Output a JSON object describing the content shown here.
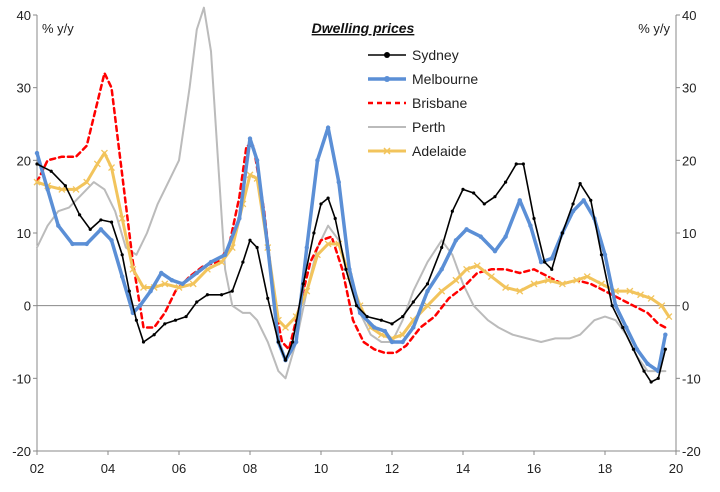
{
  "chart_data": {
    "type": "line",
    "title": "Dwelling prices",
    "ylabel_left": "% y/y",
    "ylabel_right": "% y/y",
    "xlabel": "",
    "xlim": [
      2002,
      2020
    ],
    "ylim": [
      -20,
      40
    ],
    "x_ticks": [
      2002,
      2004,
      2006,
      2008,
      2010,
      2012,
      2014,
      2016,
      2018,
      2020
    ],
    "x_tick_labels": [
      "02",
      "04",
      "06",
      "08",
      "10",
      "12",
      "14",
      "16",
      "18",
      "20"
    ],
    "y_ticks": [
      -20,
      -10,
      0,
      10,
      20,
      30,
      40
    ],
    "y_tick_labels": [
      "-20",
      "-10",
      "0",
      "10",
      "20",
      "30",
      "40"
    ],
    "grid": false,
    "legend_position": "top-center",
    "series": [
      {
        "name": "Sydney",
        "color": "#000000",
        "style": "solid-dots",
        "points": [
          [
            2002.0,
            19.5
          ],
          [
            2002.4,
            18.5
          ],
          [
            2002.8,
            16.5
          ],
          [
            2003.2,
            12.5
          ],
          [
            2003.5,
            10.5
          ],
          [
            2003.8,
            11.8
          ],
          [
            2004.1,
            11.5
          ],
          [
            2004.4,
            7
          ],
          [
            2004.6,
            2
          ],
          [
            2004.8,
            -2
          ],
          [
            2005.0,
            -5
          ],
          [
            2005.3,
            -4
          ],
          [
            2005.6,
            -2.5
          ],
          [
            2005.9,
            -2
          ],
          [
            2006.2,
            -1.5
          ],
          [
            2006.5,
            0.5
          ],
          [
            2006.8,
            1.5
          ],
          [
            2007.2,
            1.5
          ],
          [
            2007.5,
            2
          ],
          [
            2007.8,
            6
          ],
          [
            2008.0,
            9
          ],
          [
            2008.2,
            8
          ],
          [
            2008.5,
            1
          ],
          [
            2008.8,
            -5
          ],
          [
            2009.0,
            -7.5
          ],
          [
            2009.2,
            -5
          ],
          [
            2009.5,
            3
          ],
          [
            2009.8,
            10
          ],
          [
            2010.0,
            14
          ],
          [
            2010.2,
            14.8
          ],
          [
            2010.4,
            12
          ],
          [
            2010.7,
            5
          ],
          [
            2011.0,
            0
          ],
          [
            2011.3,
            -1.5
          ],
          [
            2011.7,
            -2
          ],
          [
            2012.0,
            -2.5
          ],
          [
            2012.3,
            -1.5
          ],
          [
            2012.6,
            0.5
          ],
          [
            2013.0,
            3
          ],
          [
            2013.4,
            8
          ],
          [
            2013.7,
            13
          ],
          [
            2014.0,
            16
          ],
          [
            2014.3,
            15.5
          ],
          [
            2014.6,
            14
          ],
          [
            2014.9,
            15
          ],
          [
            2015.2,
            17
          ],
          [
            2015.5,
            19.5
          ],
          [
            2015.7,
            19.5
          ],
          [
            2016.0,
            12
          ],
          [
            2016.3,
            6
          ],
          [
            2016.5,
            5
          ],
          [
            2016.8,
            10
          ],
          [
            2017.1,
            14
          ],
          [
            2017.3,
            16.8
          ],
          [
            2017.6,
            14.5
          ],
          [
            2017.9,
            7
          ],
          [
            2018.2,
            0
          ],
          [
            2018.5,
            -3
          ],
          [
            2018.8,
            -6
          ],
          [
            2019.1,
            -9
          ],
          [
            2019.3,
            -10.5
          ],
          [
            2019.5,
            -10
          ],
          [
            2019.7,
            -6
          ]
        ]
      },
      {
        "name": "Melbourne",
        "color": "#5b8fd6",
        "style": "solid-thick-dots",
        "points": [
          [
            2002.0,
            21
          ],
          [
            2002.3,
            16
          ],
          [
            2002.6,
            11
          ],
          [
            2003.0,
            8.5
          ],
          [
            2003.4,
            8.5
          ],
          [
            2003.8,
            10.5
          ],
          [
            2004.1,
            9
          ],
          [
            2004.4,
            4
          ],
          [
            2004.7,
            -1
          ],
          [
            2004.9,
            0
          ],
          [
            2005.2,
            2
          ],
          [
            2005.5,
            4.5
          ],
          [
            2005.8,
            3.5
          ],
          [
            2006.1,
            3
          ],
          [
            2006.5,
            4.5
          ],
          [
            2006.9,
            6
          ],
          [
            2007.3,
            7
          ],
          [
            2007.7,
            12
          ],
          [
            2008.0,
            23
          ],
          [
            2008.2,
            20
          ],
          [
            2008.5,
            8
          ],
          [
            2008.8,
            -5
          ],
          [
            2009.0,
            -7.5
          ],
          [
            2009.3,
            -5
          ],
          [
            2009.6,
            8
          ],
          [
            2009.9,
            20
          ],
          [
            2010.2,
            24.5
          ],
          [
            2010.5,
            17
          ],
          [
            2010.8,
            5
          ],
          [
            2011.1,
            -1
          ],
          [
            2011.5,
            -3
          ],
          [
            2011.8,
            -3.5
          ],
          [
            2012.0,
            -5
          ],
          [
            2012.3,
            -5
          ],
          [
            2012.6,
            -3
          ],
          [
            2013.0,
            2
          ],
          [
            2013.4,
            5
          ],
          [
            2013.8,
            9
          ],
          [
            2014.1,
            10.5
          ],
          [
            2014.5,
            9.5
          ],
          [
            2014.9,
            7.5
          ],
          [
            2015.2,
            9.5
          ],
          [
            2015.6,
            14.5
          ],
          [
            2015.9,
            11
          ],
          [
            2016.2,
            6
          ],
          [
            2016.5,
            6.5
          ],
          [
            2016.8,
            10
          ],
          [
            2017.1,
            13
          ],
          [
            2017.4,
            14.5
          ],
          [
            2017.7,
            12
          ],
          [
            2018.0,
            7
          ],
          [
            2018.3,
            0
          ],
          [
            2018.6,
            -3
          ],
          [
            2018.9,
            -6
          ],
          [
            2019.2,
            -8
          ],
          [
            2019.5,
            -9
          ],
          [
            2019.7,
            -4
          ]
        ]
      },
      {
        "name": "Brisbane",
        "color": "#ff0000",
        "style": "dashed",
        "points": [
          [
            2002.0,
            17
          ],
          [
            2002.3,
            20
          ],
          [
            2002.7,
            20.5
          ],
          [
            2003.1,
            20.5
          ],
          [
            2003.4,
            22
          ],
          [
            2003.7,
            28
          ],
          [
            2003.9,
            32
          ],
          [
            2004.1,
            30
          ],
          [
            2004.4,
            18
          ],
          [
            2004.7,
            6
          ],
          [
            2005.0,
            -3
          ],
          [
            2005.3,
            -3
          ],
          [
            2005.6,
            -1
          ],
          [
            2005.9,
            2
          ],
          [
            2006.3,
            4
          ],
          [
            2006.7,
            5.5
          ],
          [
            2007.1,
            6
          ],
          [
            2007.4,
            8
          ],
          [
            2007.7,
            15
          ],
          [
            2007.9,
            22
          ],
          [
            2008.1,
            22
          ],
          [
            2008.4,
            13
          ],
          [
            2008.7,
            0
          ],
          [
            2008.9,
            -5
          ],
          [
            2009.1,
            -6
          ],
          [
            2009.4,
            0
          ],
          [
            2009.7,
            6
          ],
          [
            2010.0,
            9
          ],
          [
            2010.3,
            9.5
          ],
          [
            2010.6,
            5
          ],
          [
            2010.9,
            -2
          ],
          [
            2011.2,
            -5
          ],
          [
            2011.5,
            -6
          ],
          [
            2011.8,
            -6.5
          ],
          [
            2012.1,
            -6.5
          ],
          [
            2012.4,
            -5.5
          ],
          [
            2012.8,
            -3
          ],
          [
            2013.2,
            -1.5
          ],
          [
            2013.6,
            1
          ],
          [
            2014.0,
            2.5
          ],
          [
            2014.4,
            4.5
          ],
          [
            2014.8,
            5
          ],
          [
            2015.2,
            5
          ],
          [
            2015.6,
            4.5
          ],
          [
            2016.0,
            5
          ],
          [
            2016.4,
            4
          ],
          [
            2016.8,
            3
          ],
          [
            2017.2,
            3.5
          ],
          [
            2017.6,
            3
          ],
          [
            2018.0,
            2
          ],
          [
            2018.4,
            1
          ],
          [
            2018.8,
            0
          ],
          [
            2019.2,
            -1
          ],
          [
            2019.5,
            -2.5
          ],
          [
            2019.7,
            -3
          ]
        ]
      },
      {
        "name": "Perth",
        "color": "#bbbbbb",
        "style": "solid",
        "points": [
          [
            2002.0,
            8
          ],
          [
            2002.3,
            11
          ],
          [
            2002.6,
            13
          ],
          [
            2002.9,
            13.5
          ],
          [
            2003.2,
            15
          ],
          [
            2003.6,
            17
          ],
          [
            2003.9,
            16
          ],
          [
            2004.2,
            13
          ],
          [
            2004.5,
            8
          ],
          [
            2004.8,
            7
          ],
          [
            2005.1,
            10
          ],
          [
            2005.4,
            14
          ],
          [
            2005.7,
            17
          ],
          [
            2006.0,
            20
          ],
          [
            2006.3,
            30
          ],
          [
            2006.5,
            38
          ],
          [
            2006.7,
            41
          ],
          [
            2006.9,
            35
          ],
          [
            2007.1,
            20
          ],
          [
            2007.3,
            5
          ],
          [
            2007.5,
            0
          ],
          [
            2007.8,
            -1
          ],
          [
            2008.0,
            -1
          ],
          [
            2008.2,
            -2
          ],
          [
            2008.5,
            -5
          ],
          [
            2008.8,
            -9
          ],
          [
            2009.0,
            -10
          ],
          [
            2009.3,
            -5
          ],
          [
            2009.6,
            2
          ],
          [
            2009.9,
            8
          ],
          [
            2010.2,
            11
          ],
          [
            2010.5,
            9
          ],
          [
            2010.8,
            4
          ],
          [
            2011.1,
            -1
          ],
          [
            2011.4,
            -4
          ],
          [
            2011.7,
            -5
          ],
          [
            2012.0,
            -5
          ],
          [
            2012.3,
            -2
          ],
          [
            2012.6,
            2
          ],
          [
            2013.0,
            6
          ],
          [
            2013.4,
            9
          ],
          [
            2013.7,
            7
          ],
          [
            2014.0,
            3
          ],
          [
            2014.3,
            0
          ],
          [
            2014.7,
            -2
          ],
          [
            2015.0,
            -3
          ],
          [
            2015.4,
            -4
          ],
          [
            2015.8,
            -4.5
          ],
          [
            2016.2,
            -5
          ],
          [
            2016.6,
            -4.5
          ],
          [
            2017.0,
            -4.5
          ],
          [
            2017.3,
            -4
          ],
          [
            2017.7,
            -2
          ],
          [
            2018.0,
            -1.5
          ],
          [
            2018.3,
            -2
          ],
          [
            2018.6,
            -4
          ],
          [
            2018.9,
            -7
          ],
          [
            2019.2,
            -9
          ],
          [
            2019.5,
            -9
          ],
          [
            2019.7,
            -9
          ]
        ]
      },
      {
        "name": "Adelaide",
        "color": "#f2c45c",
        "style": "solid-thick-x",
        "points": [
          [
            2002.0,
            17
          ],
          [
            2002.3,
            16.5
          ],
          [
            2002.7,
            16
          ],
          [
            2003.1,
            16
          ],
          [
            2003.4,
            17
          ],
          [
            2003.7,
            19.5
          ],
          [
            2003.9,
            21
          ],
          [
            2004.1,
            19
          ],
          [
            2004.4,
            12
          ],
          [
            2004.7,
            5
          ],
          [
            2005.0,
            2.5
          ],
          [
            2005.3,
            2.5
          ],
          [
            2005.6,
            3
          ],
          [
            2006.0,
            2.5
          ],
          [
            2006.4,
            3
          ],
          [
            2006.8,
            5
          ],
          [
            2007.2,
            6
          ],
          [
            2007.5,
            8
          ],
          [
            2007.8,
            14
          ],
          [
            2008.0,
            18
          ],
          [
            2008.2,
            17.5
          ],
          [
            2008.5,
            8
          ],
          [
            2008.8,
            -2
          ],
          [
            2009.0,
            -3
          ],
          [
            2009.3,
            -1.5
          ],
          [
            2009.6,
            2
          ],
          [
            2009.9,
            7
          ],
          [
            2010.2,
            8.5
          ],
          [
            2010.5,
            8.5
          ],
          [
            2010.8,
            4
          ],
          [
            2011.1,
            0
          ],
          [
            2011.4,
            -3
          ],
          [
            2011.7,
            -4
          ],
          [
            2012.0,
            -4.5
          ],
          [
            2012.3,
            -4
          ],
          [
            2012.6,
            -2
          ],
          [
            2013.0,
            0
          ],
          [
            2013.4,
            2
          ],
          [
            2013.8,
            3.5
          ],
          [
            2014.1,
            5
          ],
          [
            2014.4,
            5.5
          ],
          [
            2014.8,
            4
          ],
          [
            2015.2,
            2.5
          ],
          [
            2015.6,
            2
          ],
          [
            2016.0,
            3
          ],
          [
            2016.4,
            3.5
          ],
          [
            2016.8,
            3
          ],
          [
            2017.2,
            3.5
          ],
          [
            2017.5,
            4
          ],
          [
            2017.9,
            3
          ],
          [
            2018.3,
            2
          ],
          [
            2018.7,
            2
          ],
          [
            2019.0,
            1.5
          ],
          [
            2019.3,
            1
          ],
          [
            2019.6,
            0
          ],
          [
            2019.8,
            -1.5
          ]
        ]
      }
    ]
  }
}
